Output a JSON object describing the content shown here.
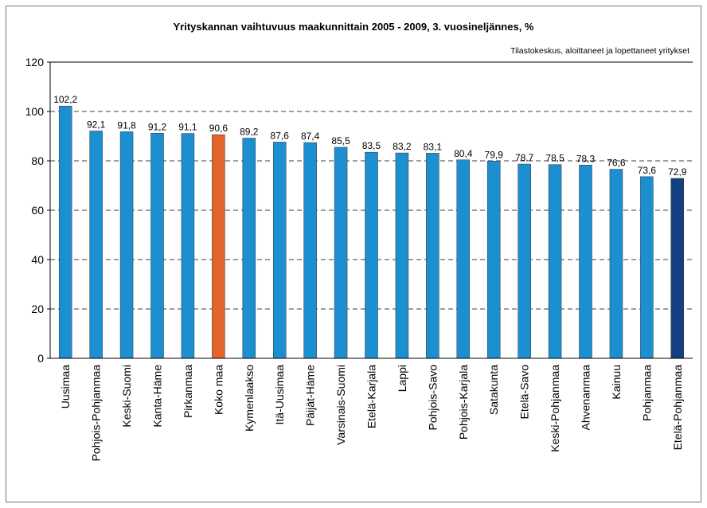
{
  "chart_data": {
    "type": "bar",
    "title": "Yrityskannan vaihtuvuus maakunnittain 2005 - 2009, 3. vuosineljännes, %",
    "subtitle": "Tilastokeskus, aloittaneet ja lopettaneet yritykset",
    "categories": [
      "Uusimaa",
      "Pohjois-Pohjanmaa",
      "Keski-Suomi",
      "Kanta-Häme",
      "Pirkanmaa",
      "Koko maa",
      "Kymenlaakso",
      "Itä-Uusimaa",
      "Päijät-Häme",
      "Varsinais-Suomi",
      "Etelä-Karjala",
      "Lappi",
      "Pohjois-Savo",
      "Pohjois-Karjala",
      "Satakunta",
      "Etelä-Savo",
      "Keski-Pohjanmaa",
      "Ahvenanmaa",
      "Kainuu",
      "Pohjanmaa",
      "Etelä-Pohjanmaa"
    ],
    "values": [
      102.2,
      92.1,
      91.8,
      91.2,
      91.1,
      90.6,
      89.2,
      87.6,
      87.4,
      85.5,
      83.5,
      83.2,
      83.1,
      80.4,
      79.9,
      78.7,
      78.5,
      78.3,
      76.6,
      73.6,
      72.9
    ],
    "value_labels": [
      "102,2",
      "92,1",
      "91,8",
      "91,2",
      "91,1",
      "90,6",
      "89,2",
      "87,6",
      "87,4",
      "85,5",
      "83,5",
      "83,2",
      "83,1",
      "80,4",
      "79,9",
      "78,7",
      "78,5",
      "78,3",
      "76,6",
      "73,6",
      "72,9"
    ],
    "colors": [
      "#1b8fd0",
      "#1b8fd0",
      "#1b8fd0",
      "#1b8fd0",
      "#1b8fd0",
      "#e2632b",
      "#1b8fd0",
      "#1b8fd0",
      "#1b8fd0",
      "#1b8fd0",
      "#1b8fd0",
      "#1b8fd0",
      "#1b8fd0",
      "#1b8fd0",
      "#1b8fd0",
      "#1b8fd0",
      "#1b8fd0",
      "#1b8fd0",
      "#1b8fd0",
      "#1b8fd0",
      "#143f80"
    ],
    "ylim": [
      0,
      120
    ],
    "yticks": [
      0,
      20,
      40,
      60,
      80,
      100,
      120
    ],
    "grid": true
  }
}
